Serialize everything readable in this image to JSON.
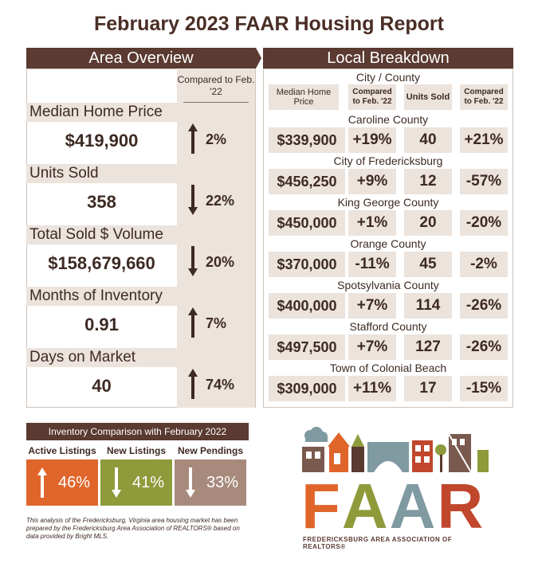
{
  "title": "February 2023 FAAR Housing Report",
  "overview": {
    "header": "Area Overview",
    "compared_label": "Compared to Feb. '22",
    "metrics": [
      {
        "label": "Median Home Price",
        "value": "$419,900",
        "pct": "2%",
        "direction": "up"
      },
      {
        "label": "Units Sold",
        "value": "358",
        "pct": "22%",
        "direction": "down"
      },
      {
        "label": "Total Sold $ Volume",
        "value": "$158,679,660",
        "pct": "20%",
        "direction": "down"
      },
      {
        "label": "Months of Inventory",
        "value": "0.91",
        "pct": "7%",
        "direction": "up"
      },
      {
        "label": "Days on Market",
        "value": "40",
        "pct": "74%",
        "direction": "up"
      }
    ]
  },
  "breakdown": {
    "header": "Local Breakdown",
    "city_county_label": "City / County",
    "columns": [
      "Median Home Price",
      "Compared to Feb. '22",
      "Units Sold",
      "Compared to Feb. '22"
    ],
    "rows": [
      {
        "name": "Caroline County",
        "median": "$339,900",
        "median_chg": "+19%",
        "units": "40",
        "units_chg": "+21%"
      },
      {
        "name": "City of Fredericksburg",
        "median": "$456,250",
        "median_chg": "+9%",
        "units": "12",
        "units_chg": "-57%"
      },
      {
        "name": "King George County",
        "median": "$450,000",
        "median_chg": "+1%",
        "units": "20",
        "units_chg": "-20%"
      },
      {
        "name": "Orange County",
        "median": "$370,000",
        "median_chg": "-11%",
        "units": "45",
        "units_chg": "-2%"
      },
      {
        "name": "Spotsylvania County",
        "median": "$400,000",
        "median_chg": "+7%",
        "units": "114",
        "units_chg": "-26%"
      },
      {
        "name": "Stafford County",
        "median": "$497,500",
        "median_chg": "+7%",
        "units": "127",
        "units_chg": "-26%"
      },
      {
        "name": "Town of Colonial Beach",
        "median": "$309,000",
        "median_chg": "+11%",
        "units": "17",
        "units_chg": "-15%"
      }
    ]
  },
  "inventory": {
    "header": "Inventory Comparison with February 2022",
    "items": [
      {
        "label": "Active Listings",
        "pct": "46%",
        "direction": "up",
        "color": "#e0652b"
      },
      {
        "label": "New Listings",
        "pct": "41%",
        "direction": "down",
        "color": "#8f9a3b"
      },
      {
        "label": "New Pendings",
        "pct": "33%",
        "direction": "down",
        "color": "#a88a7c"
      }
    ]
  },
  "footnote": "This analysis of the Fredericksburg, Virginia area housing market has been prepared by the Fredericksburg Area Association of REALTORS® based on data provided by Bright MLS.",
  "logo": {
    "letters": [
      "F",
      "A",
      "A",
      "R"
    ],
    "letter_colors": [
      "#e0652b",
      "#8f9a3b",
      "#7f9aa0",
      "#c0472c"
    ],
    "subtitle": "FREDERICKSBURG AREA ASSOCIATION OF REALTORS®"
  },
  "colors": {
    "header_bg": "#5a3a31",
    "band": "#ebe3dc",
    "text": "#3d2a23"
  }
}
